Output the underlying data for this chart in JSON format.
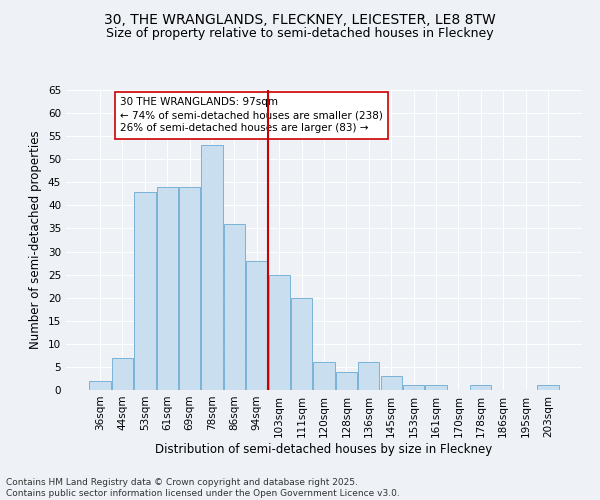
{
  "title_line1": "30, THE WRANGLANDS, FLECKNEY, LEICESTER, LE8 8TW",
  "title_line2": "Size of property relative to semi-detached houses in Fleckney",
  "xlabel": "Distribution of semi-detached houses by size in Fleckney",
  "ylabel": "Number of semi-detached properties",
  "categories": [
    "36sqm",
    "44sqm",
    "53sqm",
    "61sqm",
    "69sqm",
    "78sqm",
    "86sqm",
    "94sqm",
    "103sqm",
    "111sqm",
    "120sqm",
    "128sqm",
    "136sqm",
    "145sqm",
    "153sqm",
    "161sqm",
    "170sqm",
    "178sqm",
    "186sqm",
    "195sqm",
    "203sqm"
  ],
  "values": [
    2,
    7,
    43,
    44,
    44,
    53,
    36,
    28,
    25,
    20,
    6,
    4,
    6,
    3,
    1,
    1,
    0,
    1,
    0,
    0,
    1
  ],
  "bar_color": "#c9dff0",
  "bar_edge_color": "#6aabd2",
  "reference_line_x": 7.5,
  "reference_line_color": "#cc0000",
  "annotation_text": "30 THE WRANGLANDS: 97sqm\n← 74% of semi-detached houses are smaller (238)\n26% of semi-detached houses are larger (83) →",
  "annotation_box_color": "#cc0000",
  "ylim": [
    0,
    65
  ],
  "yticks": [
    0,
    5,
    10,
    15,
    20,
    25,
    30,
    35,
    40,
    45,
    50,
    55,
    60,
    65
  ],
  "footnote": "Contains HM Land Registry data © Crown copyright and database right 2025.\nContains public sector information licensed under the Open Government Licence v3.0.",
  "background_color": "#eef2f7",
  "plot_bg_color": "#eef2f7",
  "grid_color": "#ffffff",
  "title_fontsize": 10,
  "subtitle_fontsize": 9,
  "axis_label_fontsize": 8.5,
  "tick_fontsize": 7.5,
  "annotation_fontsize": 7.5,
  "footnote_fontsize": 6.5
}
